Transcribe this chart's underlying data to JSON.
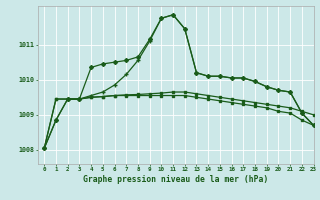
{
  "title": "Graphe pression niveau de la mer (hPa)",
  "bg_color": "#cce8e8",
  "grid_color": "#ffffff",
  "line_color": "#1a5c1a",
  "xlim": [
    -0.5,
    23
  ],
  "ylim": [
    1007.6,
    1012.1
  ],
  "yticks": [
    1008,
    1009,
    1010,
    1011
  ],
  "xticks": [
    0,
    1,
    2,
    3,
    4,
    5,
    6,
    7,
    8,
    9,
    10,
    11,
    12,
    13,
    14,
    15,
    16,
    17,
    18,
    19,
    20,
    21,
    22,
    23
  ],
  "s_peak_plus": [
    1008.05,
    1008.85,
    1009.45,
    1009.45,
    1009.55,
    1009.65,
    1009.85,
    1010.15,
    1010.55,
    1011.1,
    1011.75,
    1011.85,
    1011.45,
    1010.2,
    1010.1,
    1010.1,
    1010.05,
    1010.05,
    1009.95,
    1009.8,
    1009.7,
    1009.65,
    1009.05,
    1008.7
  ],
  "s_peak_diamond": [
    1008.05,
    1008.85,
    1009.45,
    1009.45,
    1010.35,
    1010.45,
    1010.5,
    1010.55,
    1010.65,
    1011.15,
    1011.75,
    1011.85,
    1011.45,
    1010.2,
    1010.1,
    1010.1,
    1010.05,
    1010.05,
    1009.95,
    1009.8,
    1009.7,
    1009.65,
    1009.05,
    1008.7
  ],
  "s_flat1": [
    1008.05,
    1009.45,
    1009.45,
    1009.45,
    1009.5,
    1009.52,
    1009.55,
    1009.57,
    1009.58,
    1009.6,
    1009.62,
    1009.65,
    1009.65,
    1009.6,
    1009.55,
    1009.5,
    1009.45,
    1009.4,
    1009.35,
    1009.3,
    1009.25,
    1009.2,
    1009.1,
    1009.0
  ],
  "s_flat2": [
    1008.05,
    1009.45,
    1009.45,
    1009.45,
    1009.5,
    1009.52,
    1009.55,
    1009.55,
    1009.55,
    1009.55,
    1009.55,
    1009.55,
    1009.55,
    1009.5,
    1009.45,
    1009.4,
    1009.35,
    1009.3,
    1009.25,
    1009.2,
    1009.1,
    1009.05,
    1008.85,
    1008.7
  ]
}
